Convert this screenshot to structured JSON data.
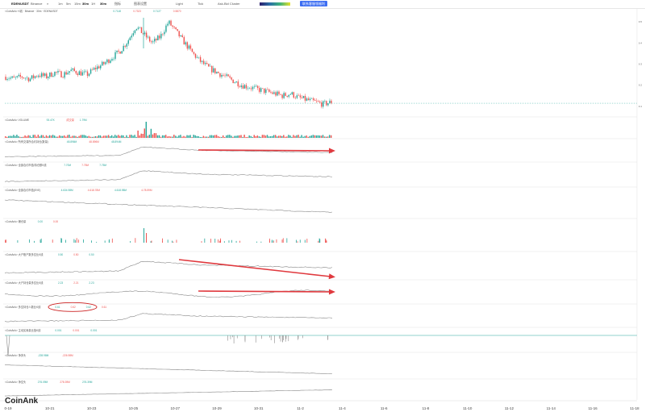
{
  "toolbar": {
    "symbol": "EDENUSDT",
    "exchange": "Binance",
    "intervals": [
      "1m",
      "5m",
      "15m",
      "30m",
      "1H"
    ],
    "active_interval": "30m",
    "indicator_label": "指标",
    "template_label": "图表设置",
    "theme_label": "Light",
    "mode_label": "Ask-Bid Cluster",
    "menu_label": "Tick",
    "promo_button": "联系客服领福利"
  },
  "brand": "CoinAnk",
  "colors": {
    "up": "#26a69a",
    "down": "#ef5350",
    "line": "#888888",
    "arrow": "#e0393e",
    "annotation": "#cc2222"
  },
  "chart_data": {
    "type": "line",
    "x_ticks": [
      "0-19",
      "10-21",
      "10-23",
      "10-25",
      "10-27",
      "10-29",
      "10-31",
      "11-2",
      "11-4",
      "11-6",
      "11-8",
      "11-10",
      "11-12",
      "11-14",
      "11-16",
      "11-18"
    ],
    "panes": [
      {
        "label": "K线 · Binance · 30m · EDENUSDT",
        "values": [
          "0.7118",
          "0.7323",
          "0.7127",
          "0.5870"
        ],
        "kind": "candles",
        "series": [
          0.24,
          0.23,
          0.24,
          0.23,
          0.25,
          0.24,
          0.26,
          0.25,
          0.27,
          0.26,
          0.25,
          0.28,
          0.3,
          0.33,
          0.36,
          0.41,
          0.48,
          0.44,
          0.4,
          0.43,
          0.5,
          0.45,
          0.4,
          0.35,
          0.31,
          0.28,
          0.26,
          0.24,
          0.22,
          0.2,
          0.19,
          0.18,
          0.17,
          0.16,
          0.15,
          0.16,
          0.14,
          0.13,
          0.12,
          0.11,
          0.12
        ]
      },
      {
        "label": "VOLUME",
        "values": [
          "93.47K",
          "成交量",
          "1.79M"
        ],
        "kind": "volume"
      },
      {
        "label": "所有交易所合约持仓(数量)",
        "values": [
          "48.896M",
          "48.896M",
          "48.894M"
        ],
        "kind": "line",
        "arrow": "flat"
      },
      {
        "label": "全部合约市值/持仓额K线",
        "values": [
          "7.70M",
          "7.75M",
          "7.75M"
        ],
        "kind": "line"
      },
      {
        "label": "全部合约市值(EVE)",
        "values": [
          "4.634.98M",
          "4.618.78M",
          "4.618.98M",
          "4.78.59M"
        ],
        "kind": "line"
      },
      {
        "label": "爆仓量",
        "values": [
          "0.00",
          "0.00"
        ],
        "kind": "bars"
      },
      {
        "label": "大户账户数多空比K线",
        "values": [
          "0.50",
          "0.50",
          "0.50"
        ],
        "kind": "line",
        "arrow": "down"
      },
      {
        "label": "大户持仓量多空比K线",
        "values": [
          "2.23",
          "2.21",
          "2.23"
        ],
        "kind": "line",
        "arrow": "flat"
      },
      {
        "label": "多空持仓人数比K线",
        "values": [
          "0.61",
          "0.62",
          "0.62",
          "0.61"
        ],
        "kind": "line",
        "circled": true
      },
      {
        "label": "主动买卖量比值K线",
        "values": [
          "0.001",
          "0.001",
          "0.001"
        ],
        "kind": "spikes"
      },
      {
        "label": "净多头",
        "values": [
          "-228.98M",
          "-226.98M"
        ],
        "kind": "line"
      },
      {
        "label": "净空头",
        "values": [
          "276.09M",
          "278.39M",
          "276.39M"
        ],
        "kind": "line"
      }
    ],
    "right_ticks": [
      "0.7",
      "0.6",
      "0.5",
      "0.4",
      "0.3",
      "0.2",
      "0.1"
    ]
  }
}
